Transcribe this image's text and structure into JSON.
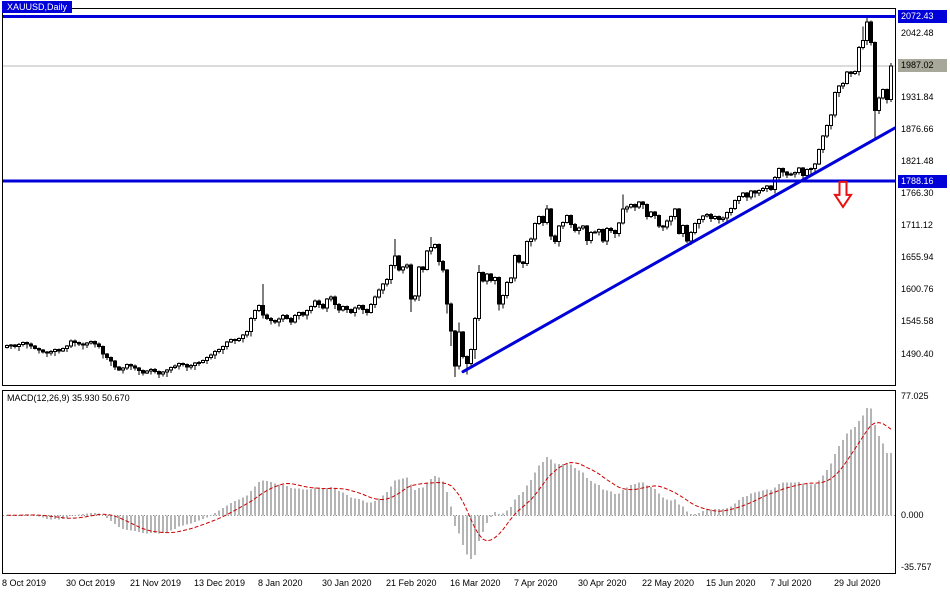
{
  "window": {
    "symbol_label": "XAUUSD,Daily"
  },
  "colors": {
    "blue": "#0000d8",
    "arrow_red": "#e81010",
    "signal_red": "#cc0000",
    "histogram_gray": "#b5b5b5",
    "current_price_line": "#b9b9b9",
    "current_badge_bg": "#a8a89a",
    "candle_black": "#000000",
    "candle_white": "#ffffff"
  },
  "chart_data": [
    {
      "type": "candlestick",
      "title": "XAUUSD,Daily",
      "x_tick_labels": [
        "8 Oct 2019",
        "30 Oct 2019",
        "21 Nov 2019",
        "13 Dec 2019",
        "8 Jan 2020",
        "30 Jan 2020",
        "21 Feb 2020",
        "16 Mar 2020",
        "7 Apr 2020",
        "30 Apr 2020",
        "22 May 2020",
        "15 Jun 2020",
        "7 Jul 2020",
        "29 Jul 2020"
      ],
      "x_tick_every": 16,
      "y_tick_labels": [
        "2042.48",
        "1987.02",
        "1931.84",
        "1876.66",
        "1821.48",
        "1766.30",
        "1711.12",
        "1655.94",
        "1600.76",
        "1545.58",
        "1490.40"
      ],
      "ylim": [
        1437,
        2085
      ],
      "first_open": 1502,
      "closes": [
        1505,
        1506,
        1503,
        1507,
        1510,
        1508,
        1504,
        1500,
        1497,
        1494,
        1492,
        1495,
        1498,
        1496,
        1500,
        1504,
        1513,
        1510,
        1508,
        1506,
        1509,
        1512,
        1508,
        1503,
        1490,
        1484,
        1478,
        1468,
        1463,
        1466,
        1472,
        1470,
        1466,
        1462,
        1458,
        1461,
        1464,
        1460,
        1456,
        1459,
        1463,
        1467,
        1470,
        1474,
        1472,
        1468,
        1471,
        1475,
        1476,
        1479,
        1484,
        1489,
        1495,
        1498,
        1503,
        1511,
        1515,
        1514,
        1517,
        1523,
        1529,
        1552,
        1565,
        1574,
        1558,
        1552,
        1548,
        1546,
        1551,
        1557,
        1552,
        1546,
        1557,
        1562,
        1558,
        1565,
        1572,
        1582,
        1576,
        1570,
        1585,
        1589,
        1576,
        1566,
        1572,
        1567,
        1562,
        1570,
        1574,
        1567,
        1562,
        1576,
        1589,
        1601,
        1611,
        1619,
        1643,
        1659,
        1635,
        1640,
        1644,
        1585,
        1590,
        1640,
        1636,
        1668,
        1674,
        1679,
        1650,
        1635,
        1577,
        1530,
        1470,
        1528,
        1486,
        1474,
        1498,
        1552,
        1631,
        1616,
        1628,
        1617,
        1622,
        1577,
        1591,
        1614,
        1621,
        1660,
        1649,
        1646,
        1684,
        1689,
        1715,
        1727,
        1717,
        1740,
        1694,
        1684,
        1711,
        1717,
        1729,
        1714,
        1703,
        1708,
        1711,
        1686,
        1700,
        1701,
        1705,
        1685,
        1707,
        1703,
        1698,
        1716,
        1740,
        1744,
        1748,
        1744,
        1752,
        1748,
        1727,
        1735,
        1729,
        1711,
        1709,
        1720,
        1727,
        1740,
        1698,
        1712,
        1685,
        1700,
        1715,
        1722,
        1728,
        1731,
        1724,
        1727,
        1722,
        1725,
        1734,
        1741,
        1755,
        1762,
        1768,
        1761,
        1771,
        1768,
        1772,
        1776,
        1780,
        1774,
        1795,
        1810,
        1804,
        1799,
        1801,
        1803,
        1811,
        1798,
        1808,
        1810,
        1818,
        1843,
        1866,
        1884,
        1902,
        1941,
        1952,
        1957,
        1976,
        1974,
        1977,
        2019,
        2031,
        2063,
        2027,
        1910,
        1932,
        1946,
        1929,
        1987
      ],
      "high_overrides": {
        "64": 1611,
        "97": 1689,
        "106": 1692,
        "113": 1545,
        "118": 1644,
        "135": 1747,
        "154": 1765,
        "214": 2055,
        "215": 2075,
        "221": 1992
      },
      "low_overrides": {
        "101": 1563,
        "110": 1560,
        "111": 1504,
        "112": 1451,
        "115": 1455,
        "117": 1482,
        "123": 1565,
        "217": 1863
      },
      "horizontal_lines": [
        {
          "price": 2072.43,
          "label": "2072.43"
        },
        {
          "price": 1788.16,
          "label": "1788.16"
        }
      ],
      "current_price": {
        "value": 1987.02,
        "label": "1987.02"
      },
      "trendline": {
        "from": {
          "index": 114,
          "price": 1460
        },
        "to": {
          "index": 222,
          "price": 1880
        }
      },
      "arrow_annotation": {
        "index": 209,
        "price": 1787
      }
    },
    {
      "type": "macd-histogram",
      "label": "MACD(12,26,9) 35.930 50.670",
      "params": {
        "fast": 12,
        "slow": 26,
        "signal": 9
      },
      "current_main": "35.930",
      "current_signal": "50.670",
      "ylim": [
        -35.757,
        77.025
      ],
      "y_tick_labels": [
        "77.025",
        "0.000",
        "-35.757"
      ]
    }
  ]
}
